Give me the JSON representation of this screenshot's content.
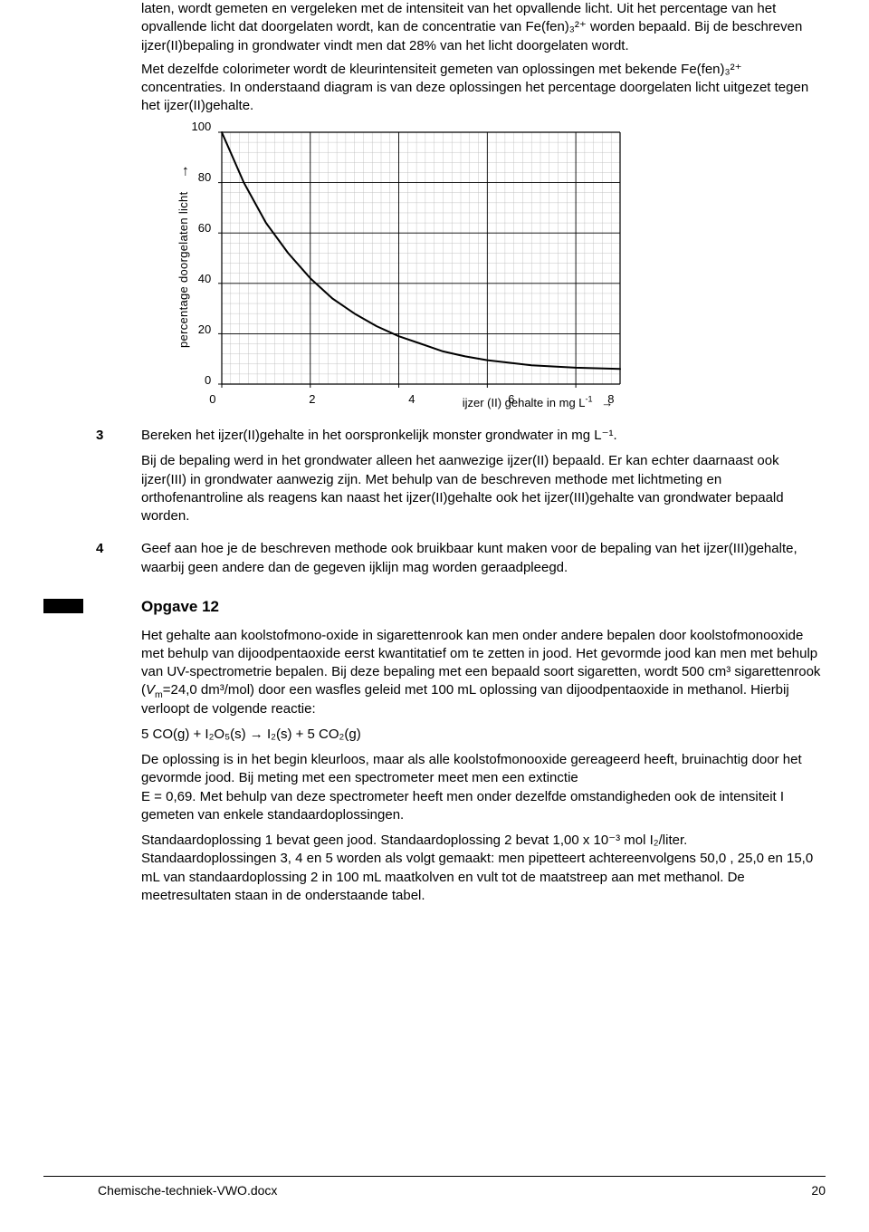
{
  "intro": {
    "p1": "laten, wordt gemeten en vergeleken met de intensiteit van het opvallende licht. Uit het percentage van het opvallende licht dat doorgelaten wordt, kan de concentratie van Fe(fen)₃²⁺ worden bepaald. Bij de beschreven ijzer(II)bepaling in grondwater vindt men dat 28% van het licht doorgelaten wordt.",
    "p2": "Met dezelfde colorimeter wordt de kleurintensiteit gemeten van oplossingen met bekende Fe(fen)₃²⁺ concentraties. In onderstaand diagram is van deze oplossingen het percentage doorgelaten licht uitgezet tegen het ijzer(II)gehalte."
  },
  "chart": {
    "type": "line",
    "ylabel": "percentage doorgelaten licht",
    "ylabel_arrow": "→",
    "xlabel_pre": "ijzer (II) gehalte in mg L",
    "xlabel_sup": "-1",
    "xlabel_arrow": "→",
    "label_fontsize": 13,
    "xlim": [
      0,
      9
    ],
    "ylim": [
      0,
      100
    ],
    "xticks": [
      0,
      2,
      4,
      6,
      8
    ],
    "yticks": [
      0,
      20,
      40,
      60,
      80,
      100
    ],
    "xtick_step_minor": 0.2,
    "ytick_step_minor": 4,
    "background_color": "#ffffff",
    "grid_major_color": "#000000",
    "grid_minor_color": "#b8b8b8",
    "line_color": "#000000",
    "line_width": 2.0,
    "data_points": [
      [
        0,
        100
      ],
      [
        0.5,
        80
      ],
      [
        1.0,
        64
      ],
      [
        1.5,
        52
      ],
      [
        2.0,
        42
      ],
      [
        2.5,
        34
      ],
      [
        3.0,
        28
      ],
      [
        3.5,
        23
      ],
      [
        4.0,
        19
      ],
      [
        4.5,
        16
      ],
      [
        5.0,
        13
      ],
      [
        5.5,
        11
      ],
      [
        6.0,
        9.5
      ],
      [
        7.0,
        7.5
      ],
      [
        8.0,
        6.5
      ],
      [
        9.0,
        6
      ]
    ]
  },
  "q3": {
    "num": "3",
    "p1": "Bereken het ijzer(II)gehalte in het oorspronkelijk monster grondwater in mg L⁻¹.",
    "p2": "Bij de bepaling werd in het grondwater alleen het aanwezige ijzer(II) bepaald. Er kan echter daarnaast ook ijzer(III) in grondwater aanwezig zijn. Met behulp van de beschreven methode met lichtmeting en orthofenantroline als reagens kan naast het ijzer(II)gehalte ook het ijzer(III)gehalte van grondwater bepaald worden."
  },
  "q4": {
    "num": "4",
    "p1": "Geef aan hoe je de beschreven methode ook bruikbaar kunt maken voor de bepaling van het ijzer(III)gehalte, waarbij geen andere dan de gegeven ijklijn mag worden geraadpleegd."
  },
  "opgave12": {
    "title": "Opgave 12",
    "p1a": "Het gehalte aan koolstofmono-oxide in sigarettenrook kan men onder andere bepalen door koolstofmonooxide met behulp van dijoodpentaoxide eerst kwantitatief om te zetten in jood. Het gevormde jood kan men met behulp van UV-spectrometrie bepalen. Bij deze bepaling met een bepaald soort sigaretten, wordt 500 cm³ sigarettenrook (",
    "p1_vm": "V",
    "p1_vmsub": "m",
    "p1b": "=24,0 dm³/mol) door een wasfles geleid met 100 mL oplossing van dijoodpentaoxide in methanol. Hierbij verloopt de volgende reactie:",
    "eq": "5 CO(g) + I₂O₅(s) → I₂(s) + 5 CO₂(g)",
    "p2": "De oplossing is in het begin kleurloos, maar als alle koolstofmonooxide gereageerd heeft, bruinachtig door het gevormde jood. Bij meting met een spectrometer meet men een extinctie",
    "p3": "E = 0,69. Met behulp van deze spectrometer heeft men onder dezelfde omstandigheden ook de intensiteit I gemeten van enkele standaardoplossingen.",
    "p4": "Standaardoplossing 1 bevat geen jood. Standaardoplossing 2 bevat 1,00 x 10⁻³ mol I₂/liter. Standaardoplossingen 3, 4 en 5 worden als volgt gemaakt: men pipetteert achtereenvolgens 50,0 , 25,0 en 15,0 mL van standaardoplossing 2 in 100 mL maatkolven en vult tot de maatstreep aan met methanol. De meetresultaten staan in de onderstaande tabel."
  },
  "footer": {
    "file": "Chemische-techniek-VWO.docx",
    "page": "20"
  }
}
